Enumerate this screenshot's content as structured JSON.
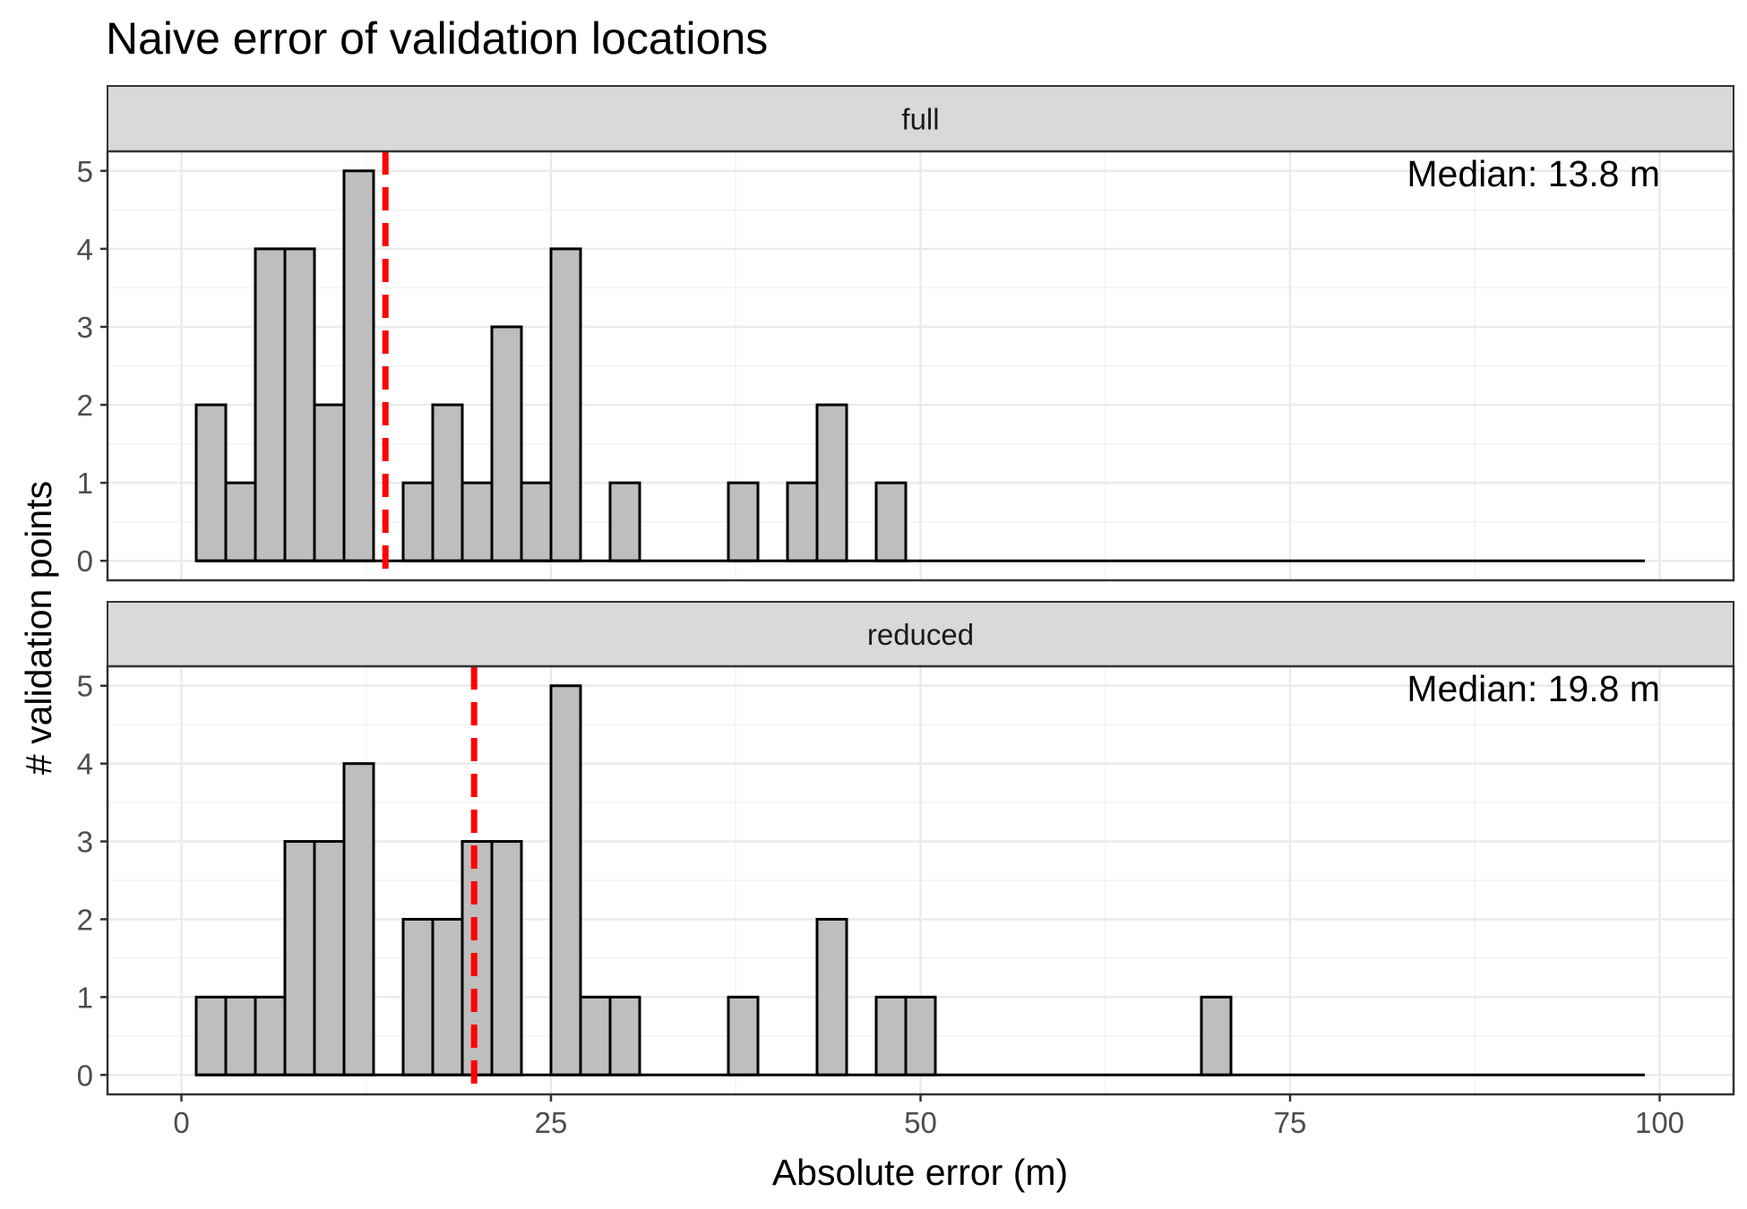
{
  "chart_data": {
    "type": "bar",
    "title": "Naive error of validation locations",
    "xlabel": "Absolute error (m)",
    "ylabel": "# validation points",
    "xlim": [
      -5,
      105
    ],
    "ylim": [
      -0.25,
      5.25
    ],
    "xticks": [
      0,
      25,
      50,
      75,
      100
    ],
    "yticks": [
      0,
      1,
      2,
      3,
      4,
      5
    ],
    "bin_width": 2,
    "bin_start": 1,
    "grid": true,
    "facets": [
      {
        "label": "full",
        "median": 13.8,
        "median_label": "Median: 13.8 m",
        "counts": [
          2,
          1,
          4,
          4,
          2,
          5,
          0,
          1,
          2,
          1,
          3,
          1,
          4,
          0,
          1,
          0,
          0,
          0,
          1,
          0,
          1,
          2,
          0,
          1,
          0,
          0,
          0,
          0,
          0,
          0,
          0,
          0,
          0,
          0,
          0,
          0,
          0,
          0,
          0,
          0,
          0,
          0,
          0,
          0,
          0,
          0,
          0,
          0,
          0
        ]
      },
      {
        "label": "reduced",
        "median": 19.8,
        "median_label": "Median: 19.8 m",
        "counts": [
          1,
          1,
          1,
          3,
          3,
          4,
          0,
          2,
          2,
          3,
          3,
          0,
          5,
          1,
          1,
          0,
          0,
          0,
          1,
          0,
          0,
          2,
          0,
          1,
          1,
          0,
          0,
          0,
          0,
          0,
          0,
          0,
          0,
          0,
          1,
          0,
          0,
          0,
          0,
          0,
          0,
          0,
          0,
          0,
          0,
          0,
          0,
          0,
          0
        ]
      }
    ]
  },
  "colors": {
    "bar_fill": "#bebebe",
    "bar_stroke": "#000000",
    "median_line": "#ff0000",
    "strip_fill": "#d9d9d9",
    "grid": "#ebebeb"
  }
}
